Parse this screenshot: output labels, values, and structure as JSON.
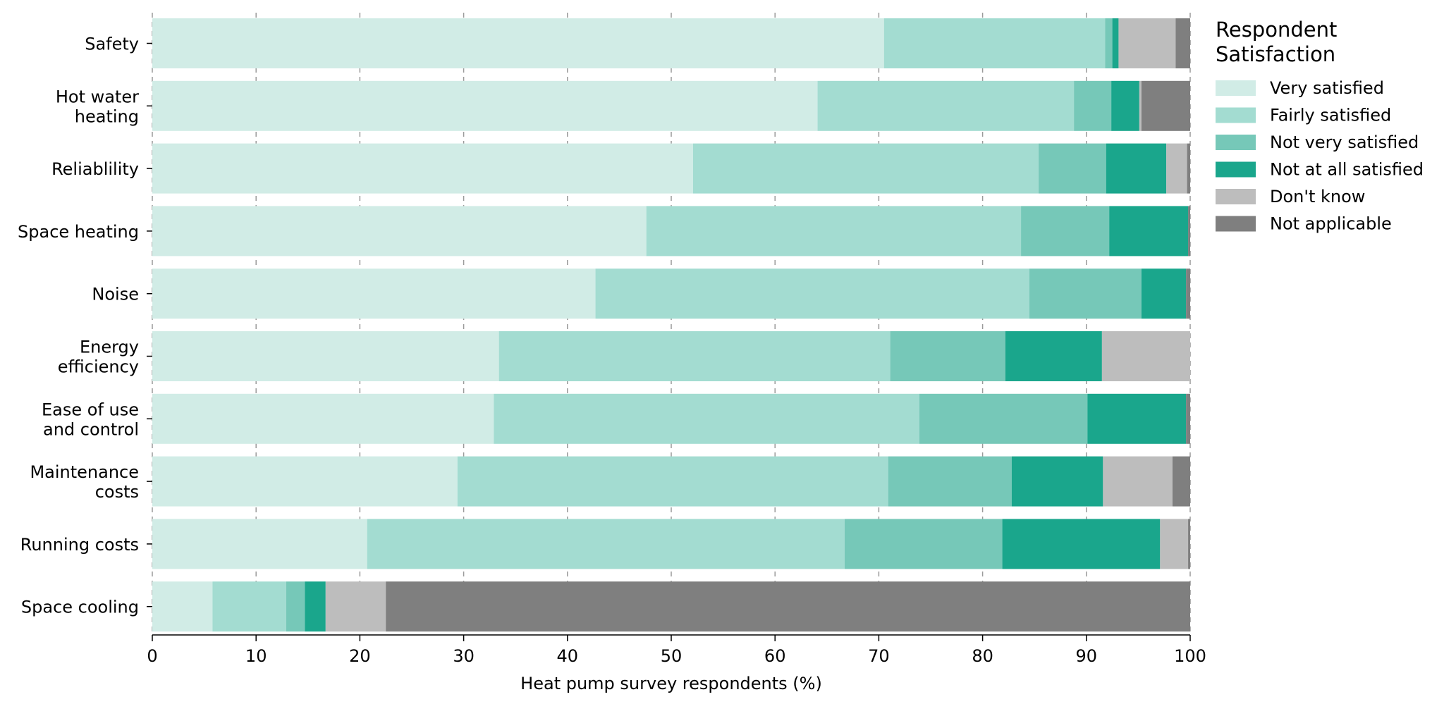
{
  "chart_data": {
    "type": "bar",
    "orientation": "horizontal",
    "stacked": true,
    "xlabel": "Heat pump survey respondents (%)",
    "xlim": [
      0,
      100
    ],
    "xticks": [
      0,
      10,
      20,
      30,
      40,
      50,
      60,
      70,
      80,
      90,
      100
    ],
    "grid": "vertical dashed",
    "legend": {
      "title": "Respondent Satisfaction",
      "placement": "right"
    },
    "categories": [
      "Safety",
      "Hot water heating",
      "Reliablility",
      "Space heating",
      "Noise",
      "Energy efficiency",
      "Ease of use and control",
      "Maintenance costs",
      "Running costs",
      "Space cooling"
    ],
    "category_lines": [
      [
        "Safety"
      ],
      [
        "Hot water",
        "heating"
      ],
      [
        "Reliablility"
      ],
      [
        "Space heating"
      ],
      [
        "Noise"
      ],
      [
        "Energy",
        "efficiency"
      ],
      [
        "Ease of use",
        "and control"
      ],
      [
        "Maintenance",
        "costs"
      ],
      [
        "Running costs"
      ],
      [
        "Space cooling"
      ]
    ],
    "series": [
      {
        "name": "Very satisfied",
        "color": "#d1ece6",
        "values": [
          70.5,
          64.1,
          52.1,
          47.6,
          42.7,
          33.4,
          32.9,
          29.4,
          20.7,
          5.8
        ]
      },
      {
        "name": "Fairly satisfied",
        "color": "#a3dcd1",
        "values": [
          21.3,
          24.7,
          33.3,
          36.1,
          41.8,
          37.7,
          41.0,
          41.5,
          46.0,
          7.1
        ]
      },
      {
        "name": "Not very satisfied",
        "color": "#76c8b8",
        "values": [
          0.7,
          3.6,
          6.5,
          8.5,
          10.8,
          11.1,
          16.2,
          11.9,
          15.2,
          1.8
        ]
      },
      {
        "name": "Not at all satisfied",
        "color": "#1aa68c",
        "values": [
          0.6,
          2.7,
          5.8,
          7.6,
          4.3,
          9.3,
          9.5,
          8.8,
          15.2,
          2.0
        ]
      },
      {
        "name": "Don't know",
        "color": "#bdbdbd",
        "values": [
          5.5,
          0.2,
          2.0,
          0.0,
          0.0,
          8.5,
          0.0,
          6.7,
          2.7,
          5.8
        ]
      },
      {
        "name": "Not applicable",
        "color": "#7f7f7f",
        "values": [
          1.4,
          4.7,
          0.3,
          0.2,
          0.4,
          0.0,
          0.4,
          1.7,
          0.2,
          77.5
        ]
      }
    ]
  }
}
